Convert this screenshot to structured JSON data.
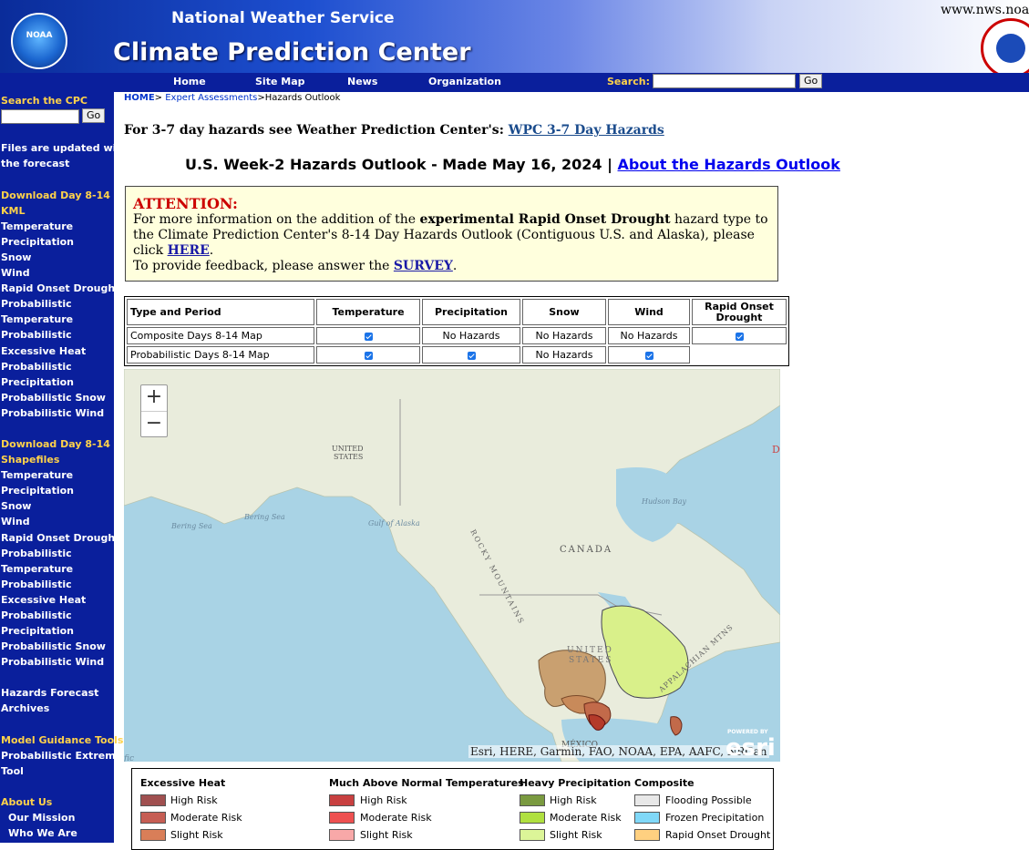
{
  "header": {
    "nws_title": "National Weather Service",
    "cpc_title": "Climate Prediction Center",
    "url_text": "www.nws.noaa.g",
    "noaa_logo_text": "NOAA"
  },
  "nav": {
    "items": [
      "Home",
      "Site Map",
      "News",
      "Organization"
    ],
    "search_label": "Search:",
    "go_label": "Go"
  },
  "sidebar": {
    "search_title": "Search the CPC",
    "go_label": "Go",
    "items": [
      "Files are updated with",
      "the forecast",
      "Download Day 8-14",
      "KML",
      "Temperature",
      "Precipitation",
      "Snow",
      "Wind",
      "Rapid Onset Drought",
      "Probabilistic",
      "Temperature",
      "Probabilistic",
      "Excessive Heat",
      "Probabilistic",
      "Precipitation",
      "Probabilistic Snow",
      "Probabilistic Wind",
      "Download Day 8-14",
      "Shapefiles",
      "Temperature",
      "Precipitation",
      "Snow",
      "Wind",
      "Rapid Onset Drought",
      "Probabilistic",
      "Temperature",
      "Probabilistic",
      "Excessive Heat",
      "Probabilistic",
      "Precipitation",
      "Probabilistic Snow",
      "Probabilistic Wind",
      "Hazards Forecast",
      "Archives",
      "Model Guidance Tools",
      "Probabilistic Extremes",
      "Tool",
      "About Us",
      "Our Mission",
      "Who We Are"
    ]
  },
  "breadcrumb": {
    "home": "HOME",
    "expert": "Expert Assessments",
    "current": "Hazards Outlook",
    "sep1": "> ",
    "sep2": ">"
  },
  "wpc": {
    "text": "For 3-7 day hazards see Weather Prediction Center's: ",
    "link": "WPC 3-7 Day Hazards"
  },
  "outlook": {
    "title": "U.S. Week-2 Hazards Outlook - Made May 16, 2024 | ",
    "link": "About the Hazards Outlook"
  },
  "attention": {
    "heading": "ATTENTION:",
    "p1_a": "For more information on the addition of the ",
    "p1_bold": "experimental Rapid Onset Drought",
    "p1_b": " hazard type to the Climate Prediction Center's 8-14 Day Hazards Outlook (Contiguous U.S. and Alaska), please click ",
    "p1_link": "HERE",
    "p1_end": ".",
    "p2_a": "To provide feedback, please answer the ",
    "p2_link": "SURVEY",
    "p2_end": "."
  },
  "hazard_table": {
    "headers": [
      "Type and Period",
      "Temperature",
      "Precipitation",
      "Snow",
      "Wind",
      "Rapid Onset Drought"
    ],
    "rows": [
      {
        "label": "Composite Days 8-14 Map",
        "cells": [
          "check",
          "No Hazards",
          "No Hazards",
          "No Hazards",
          "check"
        ]
      },
      {
        "label": "Probabilistic Days 8-14 Map",
        "cells": [
          "check",
          "check",
          "No Hazards",
          "check",
          ""
        ]
      }
    ]
  },
  "map": {
    "zoom_in": "+",
    "zoom_out": "−",
    "attribution": "Esri, HERE, Garmin, FAO, NOAA, EPA, AAFC, NRCan",
    "esri_powered": "POWERED BY",
    "esri_label": "esri",
    "labels": {
      "united_states_ak_1": "UNITED",
      "united_states_ak_2": "STATES",
      "bering_sea": "Bering Sea",
      "bering_sea2": "Bering Sea",
      "gulf_of_alaska": "Gulf of Alaska",
      "canada": "CANADA",
      "hudson_bay": "Hudson Bay",
      "rocky_mountains": "ROCKY MOUNTAINS",
      "united_states_1": "UNITED",
      "united_states_2": "STATES",
      "appalachian": "APPALACHIAN MTNS",
      "mexico": "MÉXICO",
      "edge_left": "fic",
      "edge_right": "D"
    },
    "colors": {
      "ocean": "#a9d3e5",
      "land": "#e9ecdc",
      "heavy_precip_slight": "#d9f08a",
      "drought": "#c9a070",
      "heat_moderate": "#c26a4a",
      "heat_high": "#b43a2a"
    }
  },
  "legend": {
    "groups": [
      {
        "title": "Excessive Heat",
        "items": [
          {
            "label": "High Risk",
            "color": "#a05050"
          },
          {
            "label": "Moderate Risk",
            "color": "#c65e54"
          },
          {
            "label": "Slight Risk",
            "color": "#d97e58"
          }
        ]
      },
      {
        "title": "Much Above Normal Temperatures",
        "items": [
          {
            "label": "High Risk",
            "color": "#c84040"
          },
          {
            "label": "Moderate Risk",
            "color": "#ee5050"
          },
          {
            "label": "Slight Risk",
            "color": "#f8a8a8"
          }
        ]
      },
      {
        "title": "Heavy Precipitation",
        "items": [
          {
            "label": "High Risk",
            "color": "#7a9a40"
          },
          {
            "label": "Moderate Risk",
            "color": "#b0e040"
          },
          {
            "label": "Slight Risk",
            "color": "#dcf598"
          }
        ]
      },
      {
        "title": "Composite",
        "items": [
          {
            "label": "Flooding Possible",
            "color": "#e8e8e8"
          },
          {
            "label": "Frozen Precipitation",
            "color": "#80d8f8"
          },
          {
            "label": "Rapid Onset Drought",
            "color": "#ffd080"
          }
        ]
      }
    ]
  }
}
